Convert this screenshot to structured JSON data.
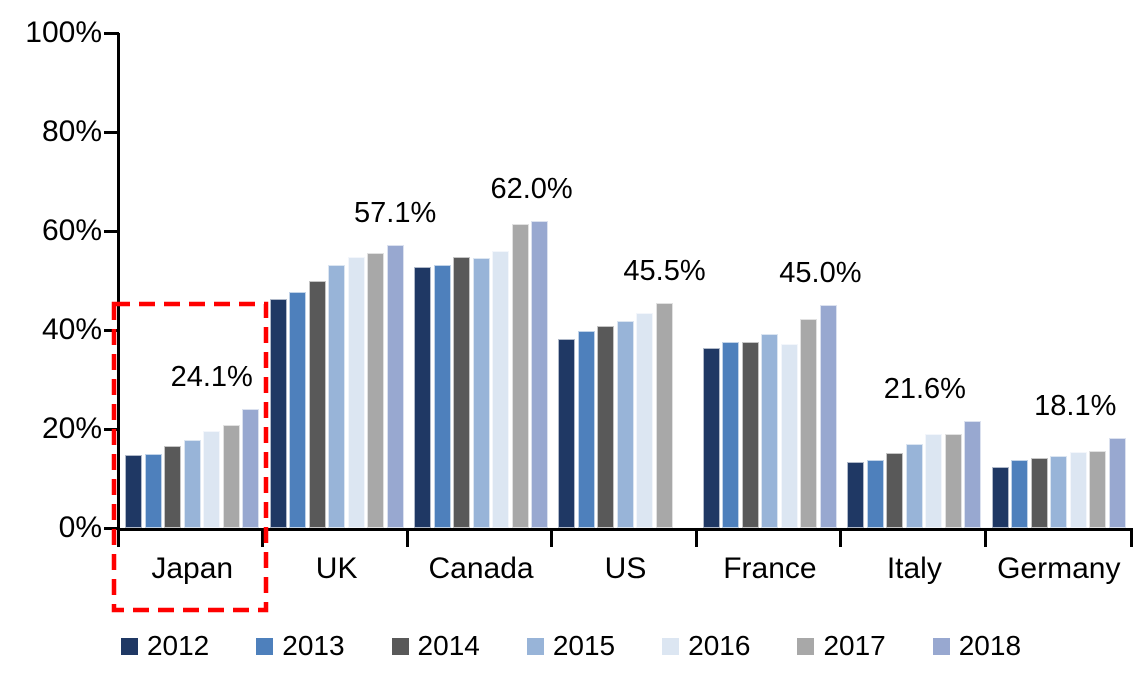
{
  "chart_data": {
    "type": "bar",
    "title": "",
    "categories": [
      "Japan",
      "UK",
      "Canada",
      "US",
      "France",
      "Italy",
      "Germany"
    ],
    "series": [
      {
        "name": "2012",
        "color": "#1F3864",
        "values": [
          14.7,
          46.2,
          52.8,
          38.1,
          36.4,
          13.3,
          12.3
        ]
      },
      {
        "name": "2013",
        "color": "#4E80BC",
        "values": [
          15.0,
          47.6,
          53.2,
          39.9,
          37.5,
          13.8,
          13.7
        ]
      },
      {
        "name": "2014",
        "color": "#595959",
        "values": [
          16.5,
          49.9,
          54.8,
          40.9,
          37.5,
          15.2,
          14.2
        ]
      },
      {
        "name": "2015",
        "color": "#98B4D8",
        "values": [
          17.8,
          53.2,
          54.5,
          41.9,
          39.2,
          16.9,
          14.6
        ]
      },
      {
        "name": "2016",
        "color": "#DCE6F2",
        "values": [
          19.7,
          54.7,
          56.0,
          43.4,
          37.2,
          18.9,
          15.3
        ]
      },
      {
        "name": "2017",
        "color": "#A8A8A8",
        "values": [
          20.8,
          55.6,
          61.4,
          45.5,
          42.2,
          19.0,
          15.6
        ]
      },
      {
        "name": "2018",
        "color": "#98A8D0",
        "values": [
          24.1,
          57.1,
          62.0,
          null,
          45.0,
          21.6,
          18.1
        ]
      }
    ],
    "data_labels": [
      {
        "category": "Japan",
        "series": "2018",
        "text": "24.1%"
      },
      {
        "category": "UK",
        "series": "2018",
        "text": "57.1%"
      },
      {
        "category": "Canada",
        "series": "2018",
        "text": "62.0%"
      },
      {
        "category": "US",
        "series": "2017",
        "text": "45.5%"
      },
      {
        "category": "France",
        "series": "2018",
        "text": "45.0%"
      },
      {
        "category": "Italy",
        "series": "2018",
        "text": "21.6%"
      },
      {
        "category": "Germany",
        "series": "2018",
        "text": "18.1%"
      }
    ],
    "y_axis": {
      "tick_labels": [
        "0%",
        "20%",
        "40%",
        "60%",
        "80%",
        "100%"
      ],
      "min": 0,
      "max": 100
    },
    "ylim": [
      0,
      100
    ],
    "xlabel": "",
    "ylabel": "",
    "grid": false,
    "legend": {
      "position": "bottom",
      "entries": [
        "2012",
        "2013",
        "2014",
        "2015",
        "2016",
        "2017",
        "2018"
      ]
    },
    "annotation": {
      "type": "dashed-box",
      "color": "#FF0000",
      "around_category": "Japan"
    }
  }
}
